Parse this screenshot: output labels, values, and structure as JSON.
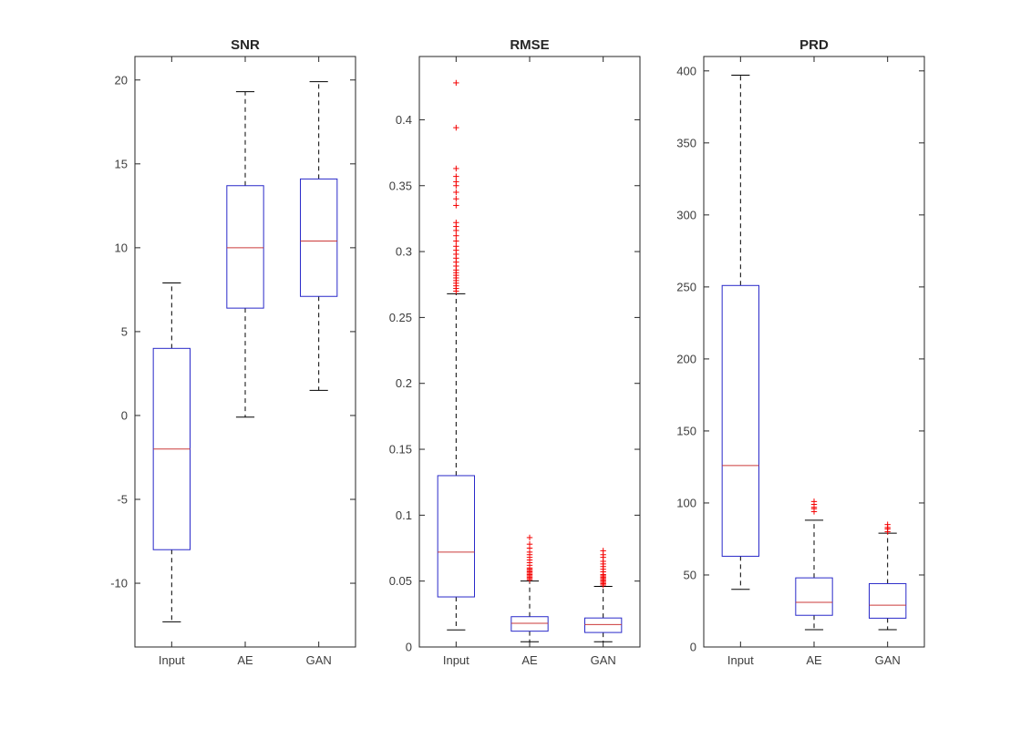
{
  "figure": {
    "background": "#ffffff",
    "axis_color": "#262626",
    "box_color": "#2929c9",
    "median_color": "#cb3a3a",
    "whisker_color": "#000000",
    "outlier_color": "#f40000"
  },
  "chart_data": [
    {
      "type": "boxplot",
      "title": "SNR",
      "categories": [
        "Input",
        "AE",
        "GAN"
      ],
      "ylim": [
        -13.8,
        21.4
      ],
      "yticks": [
        -10,
        -5,
        0,
        5,
        10,
        15,
        20
      ],
      "boxes": [
        {
          "whislo": -12.3,
          "q1": -8.0,
          "med": -2.0,
          "q3": 4.0,
          "whishi": 7.9,
          "fliers": []
        },
        {
          "whislo": -0.1,
          "q1": 6.4,
          "med": 10.0,
          "q3": 13.7,
          "whishi": 19.3,
          "fliers": []
        },
        {
          "whislo": 1.5,
          "q1": 7.1,
          "med": 10.4,
          "q3": 14.1,
          "whishi": 19.9,
          "fliers": []
        }
      ]
    },
    {
      "type": "boxplot",
      "title": "RMSE",
      "categories": [
        "Input",
        "AE",
        "GAN"
      ],
      "ylim": [
        0,
        0.448
      ],
      "yticks": [
        0,
        0.05,
        0.1,
        0.15,
        0.2,
        0.25,
        0.3,
        0.35,
        0.4
      ],
      "boxes": [
        {
          "whislo": 0.013,
          "q1": 0.038,
          "med": 0.072,
          "q3": 0.13,
          "whishi": 0.268,
          "fliers": [
            0.27,
            0.272,
            0.274,
            0.276,
            0.278,
            0.28,
            0.282,
            0.284,
            0.286,
            0.289,
            0.292,
            0.295,
            0.298,
            0.301,
            0.304,
            0.308,
            0.312,
            0.316,
            0.319,
            0.322,
            0.335,
            0.34,
            0.345,
            0.35,
            0.353,
            0.357,
            0.363,
            0.394,
            0.428
          ]
        },
        {
          "whislo": 0.004,
          "q1": 0.012,
          "med": 0.018,
          "q3": 0.023,
          "whishi": 0.05,
          "fliers": [
            0.051,
            0.052,
            0.053,
            0.054,
            0.055,
            0.056,
            0.057,
            0.058,
            0.059,
            0.06,
            0.062,
            0.064,
            0.066,
            0.068,
            0.07,
            0.072,
            0.075,
            0.078,
            0.083
          ]
        },
        {
          "whislo": 0.004,
          "q1": 0.011,
          "med": 0.017,
          "q3": 0.022,
          "whishi": 0.046,
          "fliers": [
            0.047,
            0.048,
            0.049,
            0.05,
            0.051,
            0.052,
            0.053,
            0.054,
            0.055,
            0.057,
            0.059,
            0.061,
            0.063,
            0.065,
            0.068,
            0.07,
            0.073
          ]
        }
      ]
    },
    {
      "type": "boxplot",
      "title": "PRD",
      "categories": [
        "Input",
        "AE",
        "GAN"
      ],
      "ylim": [
        0,
        410
      ],
      "yticks": [
        0,
        50,
        100,
        150,
        200,
        250,
        300,
        350,
        400
      ],
      "boxes": [
        {
          "whislo": 40,
          "q1": 63,
          "med": 126,
          "q3": 251,
          "whishi": 397,
          "fliers": []
        },
        {
          "whislo": 12,
          "q1": 22,
          "med": 31,
          "q3": 48,
          "whishi": 88,
          "fliers": [
            94,
            96,
            97,
            99,
            101
          ]
        },
        {
          "whislo": 12,
          "q1": 20,
          "med": 29,
          "q3": 44,
          "whishi": 79,
          "fliers": [
            80,
            82,
            83,
            85
          ]
        }
      ]
    }
  ]
}
